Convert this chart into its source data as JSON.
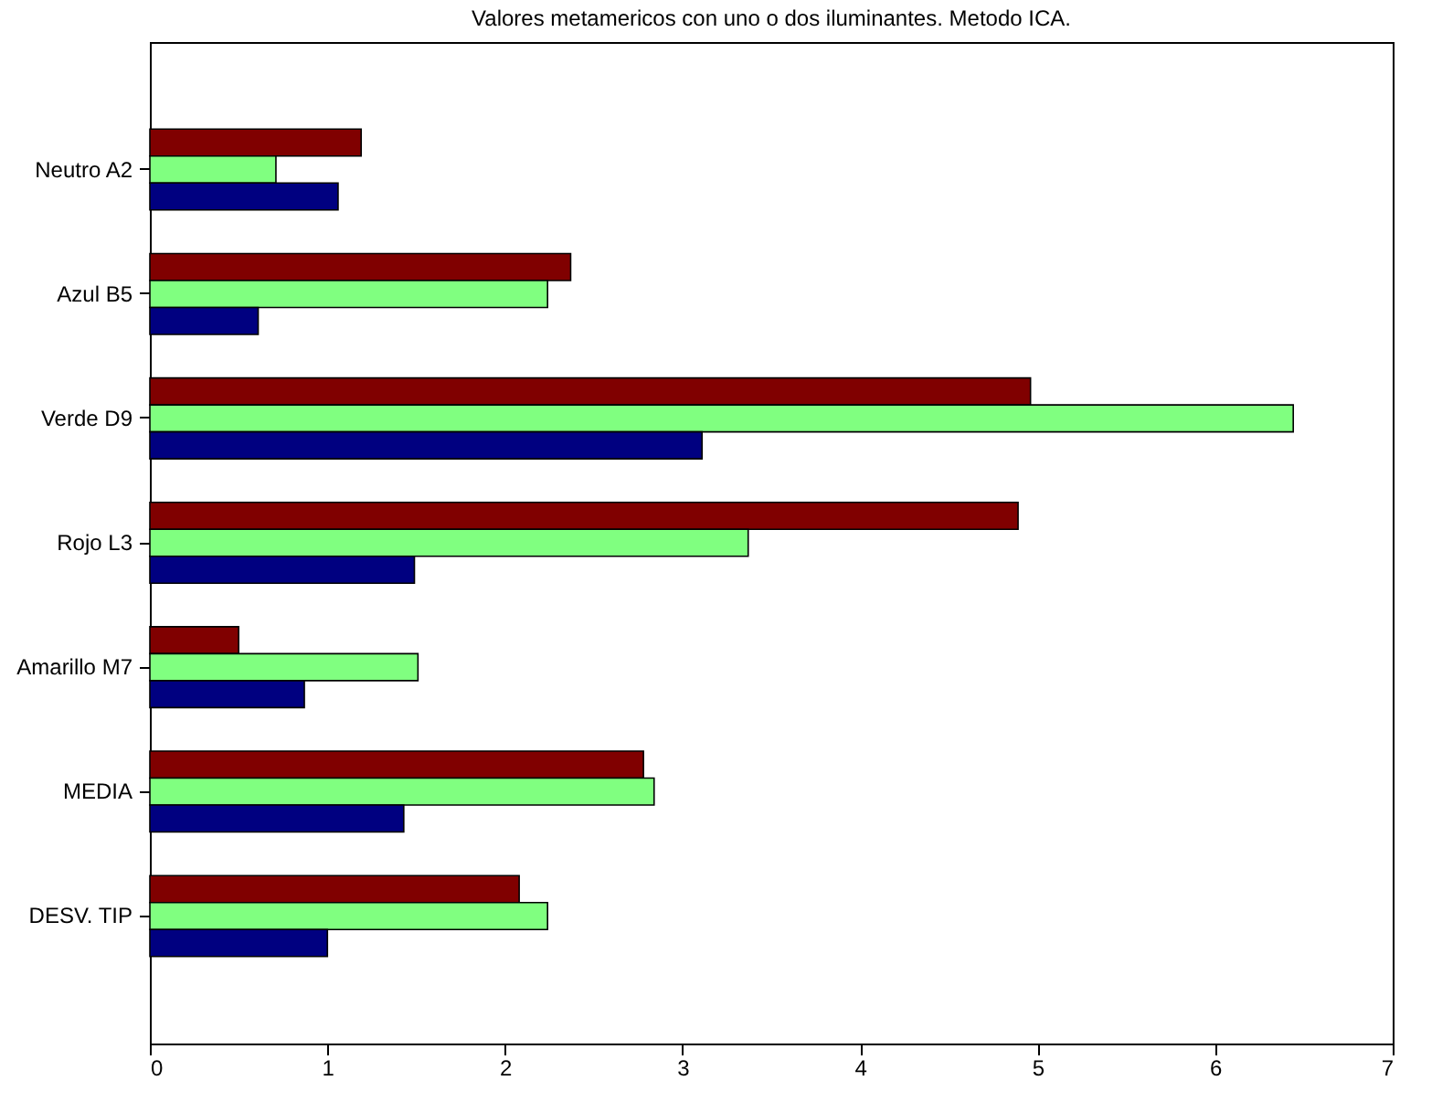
{
  "chart_data": {
    "type": "bar",
    "orientation": "horizontal",
    "title": "Valores metamericos con uno o dos iluminantes. Metodo ICA.",
    "categories": [
      "Neutro A2",
      "Azul B5",
      "Verde D9",
      "Rojo L3",
      "Amarillo M7",
      "MEDIA",
      "DESV. TIP"
    ],
    "series": [
      {
        "color": "#800000",
        "values": [
          1.19,
          2.37,
          4.96,
          4.89,
          0.5,
          2.78,
          2.08
        ]
      },
      {
        "color": "#80ff80",
        "values": [
          0.71,
          2.24,
          6.44,
          3.37,
          1.51,
          2.84,
          2.24
        ]
      },
      {
        "color": "#000080",
        "values": [
          1.06,
          0.61,
          3.11,
          1.49,
          0.87,
          1.43,
          1.0
        ]
      }
    ],
    "xlim": [
      0,
      7
    ],
    "xticks": [
      0,
      1,
      2,
      3,
      4,
      5,
      6,
      7
    ]
  }
}
